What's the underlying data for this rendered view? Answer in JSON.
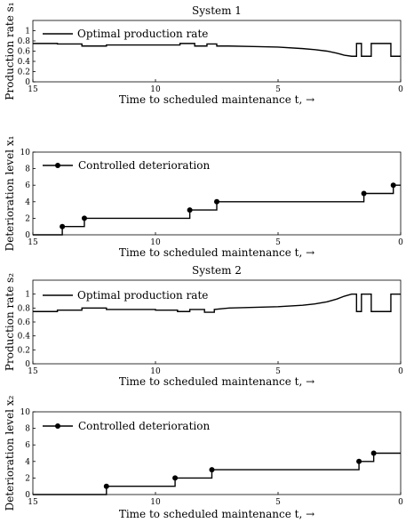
{
  "chart_data": [
    {
      "type": "line",
      "title": "System 1",
      "xlabel": "Time to scheduled maintenance t, →",
      "ylabel": "Production rate s₁",
      "xlim": [
        15,
        0
      ],
      "ylim": [
        0,
        1.2
      ],
      "x_reversed": true,
      "xticks": [
        15,
        10,
        5,
        0
      ],
      "yticks": [
        "0",
        "0.2",
        "0.4",
        "0.6",
        "0.8",
        "1"
      ],
      "ytick_values": [
        0,
        0.2,
        0.4,
        0.6,
        0.8,
        1
      ],
      "legend": "top-left",
      "step": false,
      "markers": false,
      "series": [
        {
          "name": "Optimal production rate",
          "x": [
            15,
            14,
            14,
            13,
            13,
            12,
            12,
            9,
            9,
            8.4,
            8.4,
            7.9,
            7.9,
            7.5,
            7.5,
            7,
            6,
            5,
            4,
            3.5,
            3,
            2.6,
            2.3,
            2,
            1.8,
            1.8,
            1.6,
            1.6,
            1.2,
            1.2,
            1,
            0.4,
            0.4,
            0
          ],
          "y": [
            0.75,
            0.75,
            0.74,
            0.74,
            0.7,
            0.7,
            0.72,
            0.72,
            0.75,
            0.75,
            0.7,
            0.7,
            0.74,
            0.74,
            0.7,
            0.7,
            0.69,
            0.68,
            0.65,
            0.63,
            0.6,
            0.56,
            0.52,
            0.5,
            0.5,
            0.75,
            0.75,
            0.5,
            0.5,
            0.75,
            0.75,
            0.75,
            0.5,
            0.5
          ]
        }
      ]
    },
    {
      "type": "line",
      "title": "",
      "xlabel": "Time to scheduled maintenance t, →",
      "ylabel": "Deterioration level x₁",
      "xlim": [
        15,
        0
      ],
      "ylim": [
        0,
        10
      ],
      "x_reversed": true,
      "xticks": [
        15,
        10,
        5,
        0
      ],
      "yticks": [
        "0",
        "2",
        "4",
        "6",
        "8",
        "10"
      ],
      "ytick_values": [
        0,
        2,
        4,
        6,
        8,
        10
      ],
      "legend": "top-left",
      "step": true,
      "markers": true,
      "series": [
        {
          "name": "Controlled deterioration",
          "x": [
            15,
            13.8,
            12.9,
            8.6,
            7.5,
            1.5,
            0.3,
            0
          ],
          "y": [
            0,
            1,
            2,
            3,
            4,
            5,
            6,
            6
          ],
          "jumps": [
            [
              13.8,
              1
            ],
            [
              12.9,
              2
            ],
            [
              8.6,
              3
            ],
            [
              7.5,
              4
            ],
            [
              1.5,
              5
            ],
            [
              0.3,
              6
            ]
          ]
        }
      ]
    },
    {
      "type": "line",
      "title": "System 2",
      "xlabel": "Time to scheduled maintenance t, →",
      "ylabel": "Production rate s₂",
      "xlim": [
        15,
        0
      ],
      "ylim": [
        0,
        1.2
      ],
      "x_reversed": true,
      "xticks": [
        15,
        10,
        5,
        0
      ],
      "yticks": [
        "0",
        "0.2",
        "0.4",
        "0.6",
        "0.8",
        "1"
      ],
      "ytick_values": [
        0,
        0.2,
        0.4,
        0.6,
        0.8,
        1
      ],
      "legend": "top-left",
      "step": false,
      "markers": false,
      "series": [
        {
          "name": "Optimal production rate",
          "x": [
            15,
            14,
            14,
            13,
            13,
            12,
            12,
            10,
            10,
            9.1,
            9.1,
            8.6,
            8.6,
            8,
            8,
            7.6,
            7.6,
            7,
            6,
            5,
            4,
            3.5,
            3,
            2.6,
            2.3,
            2,
            1.8,
            1.8,
            1.6,
            1.6,
            1.2,
            1.2,
            1,
            0.4,
            0.4,
            0
          ],
          "y": [
            0.75,
            0.75,
            0.77,
            0.77,
            0.8,
            0.8,
            0.78,
            0.78,
            0.77,
            0.77,
            0.75,
            0.75,
            0.78,
            0.78,
            0.74,
            0.74,
            0.78,
            0.8,
            0.81,
            0.82,
            0.84,
            0.86,
            0.89,
            0.93,
            0.97,
            1,
            1,
            0.75,
            0.75,
            1,
            1,
            0.75,
            0.75,
            0.75,
            1,
            1
          ]
        }
      ]
    },
    {
      "type": "line",
      "title": "",
      "xlabel": "Time to scheduled maintenance t, →",
      "ylabel": "Deterioration level x₂",
      "xlim": [
        15,
        0
      ],
      "ylim": [
        0,
        10
      ],
      "x_reversed": true,
      "xticks": [
        15,
        10,
        5,
        0
      ],
      "yticks": [
        "0",
        "2",
        "4",
        "6",
        "8",
        "10"
      ],
      "ytick_values": [
        0,
        2,
        4,
        6,
        8,
        10
      ],
      "legend": "top-left",
      "step": true,
      "markers": true,
      "series": [
        {
          "name": "Controlled deterioration",
          "x": [
            15,
            12,
            9.2,
            7.7,
            1.7,
            1.1,
            0
          ],
          "y": [
            0,
            1,
            2,
            3,
            4,
            5,
            5
          ],
          "jumps": [
            [
              12,
              1
            ],
            [
              9.2,
              2
            ],
            [
              7.7,
              3
            ],
            [
              1.7,
              4
            ],
            [
              1.1,
              5
            ]
          ]
        }
      ]
    }
  ]
}
